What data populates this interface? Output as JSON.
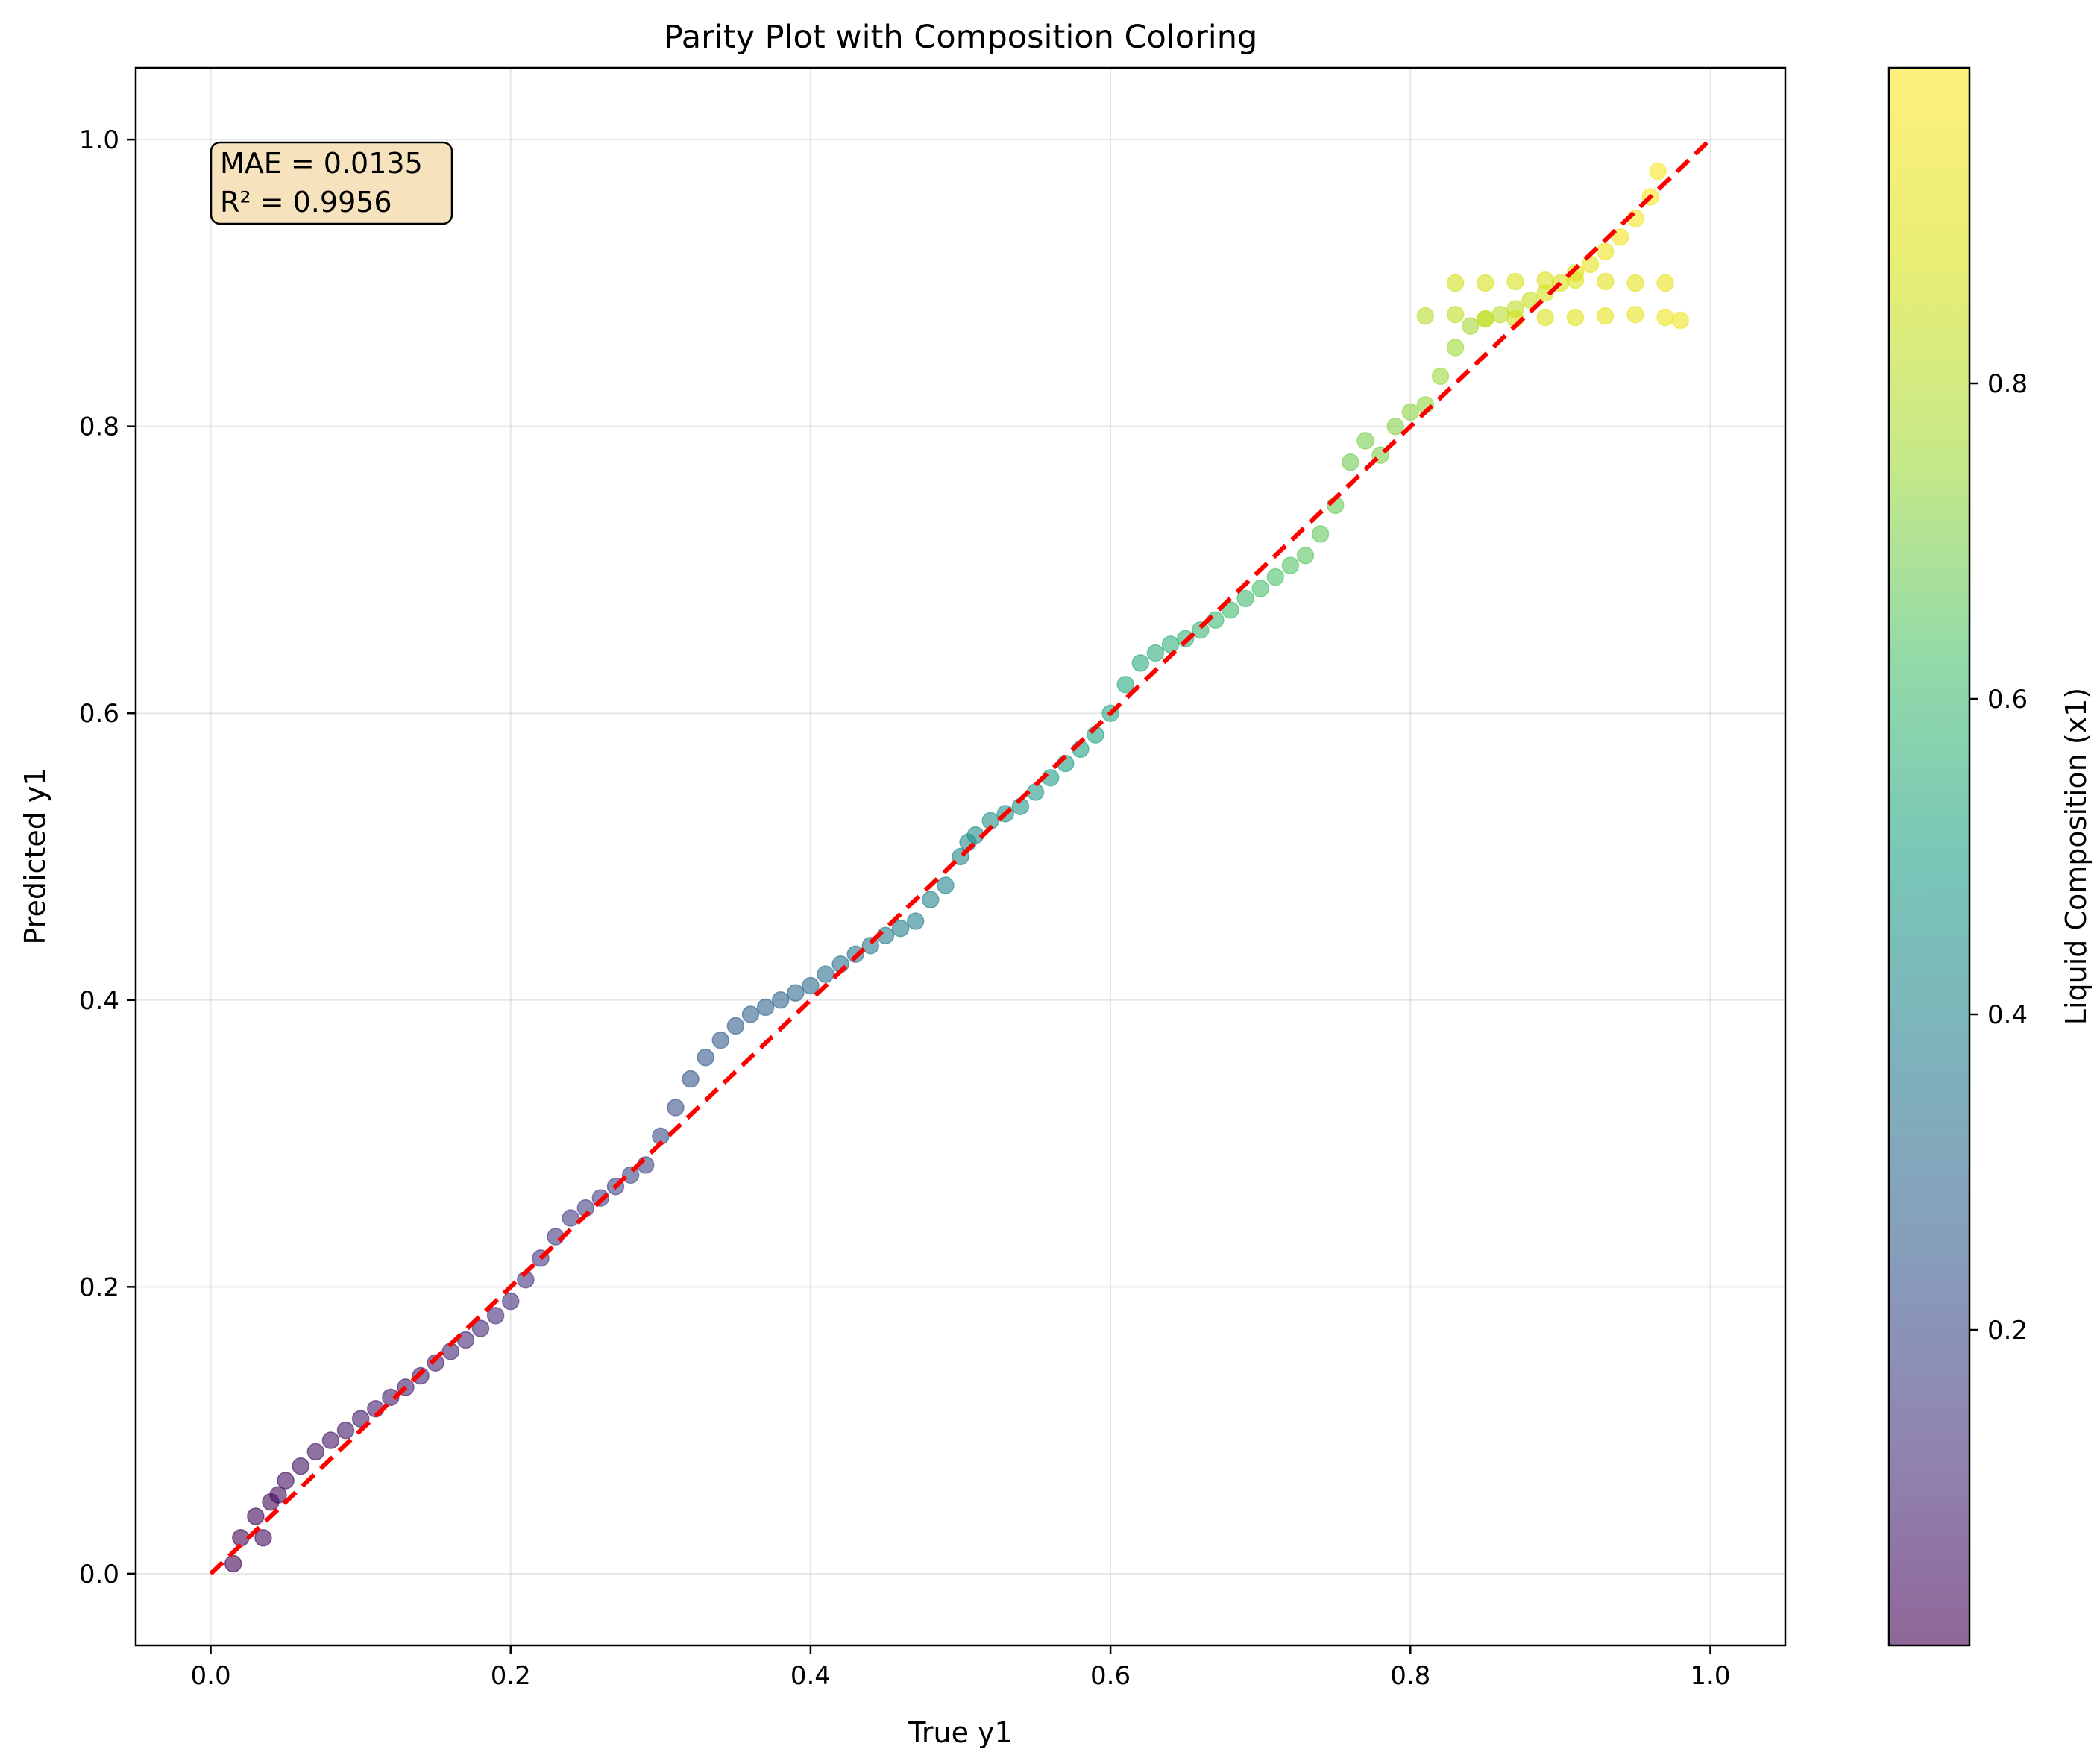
{
  "chart_data": {
    "type": "scatter",
    "title": "Parity Plot with Composition Coloring",
    "xlabel": "True y1",
    "ylabel": "Predicted y1",
    "xlim": [
      -0.05,
      1.05
    ],
    "ylim": [
      -0.05,
      1.05
    ],
    "xticks": [
      "0.0",
      "0.2",
      "0.4",
      "0.6",
      "0.8",
      "1.0"
    ],
    "yticks": [
      "0.0",
      "0.2",
      "0.4",
      "0.6",
      "0.8",
      "1.0"
    ],
    "grid": true,
    "annotation": {
      "lines": [
        "MAE = 0.0135",
        "R² = 0.9956"
      ],
      "position": "top-left"
    },
    "reference_line": {
      "x": [
        0.0,
        1.0
      ],
      "y": [
        0.0,
        1.0
      ],
      "color": "#ff0000",
      "style": "dashed"
    },
    "colorbar": {
      "label": "Liquid Composition (x1)",
      "colormap": "viridis",
      "range": [
        0.0,
        1.0
      ],
      "ticks": [
        "0.2",
        "0.4",
        "0.6",
        "0.8"
      ],
      "alpha": 0.6
    },
    "points": {
      "x": [
        0.015,
        0.02,
        0.03,
        0.035,
        0.04,
        0.045,
        0.05,
        0.06,
        0.07,
        0.08,
        0.09,
        0.1,
        0.11,
        0.12,
        0.13,
        0.14,
        0.15,
        0.16,
        0.17,
        0.18,
        0.19,
        0.2,
        0.21,
        0.22,
        0.23,
        0.24,
        0.25,
        0.26,
        0.27,
        0.28,
        0.29,
        0.3,
        0.31,
        0.32,
        0.33,
        0.34,
        0.35,
        0.36,
        0.37,
        0.38,
        0.39,
        0.4,
        0.41,
        0.42,
        0.43,
        0.44,
        0.45,
        0.46,
        0.47,
        0.48,
        0.49,
        0.5,
        0.505,
        0.51,
        0.52,
        0.53,
        0.54,
        0.55,
        0.56,
        0.57,
        0.58,
        0.59,
        0.6,
        0.61,
        0.62,
        0.63,
        0.64,
        0.65,
        0.66,
        0.67,
        0.68,
        0.69,
        0.7,
        0.71,
        0.72,
        0.73,
        0.74,
        0.75,
        0.76,
        0.77,
        0.78,
        0.79,
        0.8,
        0.81,
        0.82,
        0.83,
        0.84,
        0.85,
        0.86,
        0.87,
        0.88,
        0.89,
        0.9,
        0.91,
        0.92,
        0.93,
        0.94,
        0.95,
        0.96,
        0.965,
        0.81,
        0.83,
        0.85,
        0.87,
        0.89,
        0.91,
        0.93,
        0.95,
        0.97,
        0.98,
        0.83,
        0.85,
        0.87,
        0.89,
        0.91,
        0.93,
        0.95,
        0.97
      ],
      "y": [
        0.007,
        0.025,
        0.04,
        0.025,
        0.05,
        0.055,
        0.065,
        0.075,
        0.085,
        0.093,
        0.1,
        0.108,
        0.115,
        0.123,
        0.13,
        0.138,
        0.147,
        0.155,
        0.163,
        0.171,
        0.18,
        0.19,
        0.205,
        0.22,
        0.235,
        0.248,
        0.255,
        0.262,
        0.27,
        0.278,
        0.285,
        0.305,
        0.325,
        0.345,
        0.36,
        0.372,
        0.382,
        0.39,
        0.395,
        0.4,
        0.405,
        0.41,
        0.418,
        0.425,
        0.432,
        0.438,
        0.445,
        0.45,
        0.455,
        0.47,
        0.48,
        0.5,
        0.51,
        0.515,
        0.525,
        0.53,
        0.535,
        0.545,
        0.555,
        0.565,
        0.575,
        0.585,
        0.6,
        0.62,
        0.635,
        0.642,
        0.648,
        0.652,
        0.658,
        0.665,
        0.672,
        0.68,
        0.687,
        0.695,
        0.703,
        0.71,
        0.725,
        0.745,
        0.775,
        0.79,
        0.78,
        0.8,
        0.81,
        0.815,
        0.835,
        0.855,
        0.87,
        0.875,
        0.878,
        0.882,
        0.888,
        0.893,
        0.9,
        0.907,
        0.913,
        0.922,
        0.932,
        0.945,
        0.96,
        0.978,
        0.877,
        0.878,
        0.875,
        0.875,
        0.876,
        0.876,
        0.877,
        0.878,
        0.876,
        0.874,
        0.9,
        0.9,
        0.901,
        0.902,
        0.902,
        0.901,
        0.9,
        0.9
      ],
      "c": [
        0.01,
        0.015,
        0.02,
        0.025,
        0.03,
        0.035,
        0.04,
        0.045,
        0.05,
        0.055,
        0.06,
        0.065,
        0.07,
        0.075,
        0.08,
        0.085,
        0.09,
        0.095,
        0.1,
        0.105,
        0.11,
        0.12,
        0.13,
        0.14,
        0.15,
        0.16,
        0.17,
        0.175,
        0.18,
        0.19,
        0.2,
        0.21,
        0.22,
        0.23,
        0.24,
        0.25,
        0.26,
        0.27,
        0.28,
        0.29,
        0.3,
        0.31,
        0.32,
        0.33,
        0.34,
        0.35,
        0.36,
        0.37,
        0.38,
        0.39,
        0.4,
        0.41,
        0.42,
        0.43,
        0.44,
        0.45,
        0.46,
        0.47,
        0.48,
        0.49,
        0.5,
        0.51,
        0.52,
        0.53,
        0.54,
        0.55,
        0.56,
        0.57,
        0.58,
        0.59,
        0.6,
        0.61,
        0.62,
        0.63,
        0.64,
        0.65,
        0.66,
        0.67,
        0.68,
        0.69,
        0.7,
        0.71,
        0.72,
        0.73,
        0.74,
        0.75,
        0.76,
        0.78,
        0.8,
        0.82,
        0.84,
        0.86,
        0.88,
        0.9,
        0.92,
        0.94,
        0.96,
        0.97,
        0.98,
        0.99,
        0.8,
        0.82,
        0.84,
        0.86,
        0.88,
        0.9,
        0.92,
        0.93,
        0.94,
        0.95,
        0.86,
        0.87,
        0.88,
        0.89,
        0.9,
        0.91,
        0.92,
        0.93
      ]
    }
  }
}
